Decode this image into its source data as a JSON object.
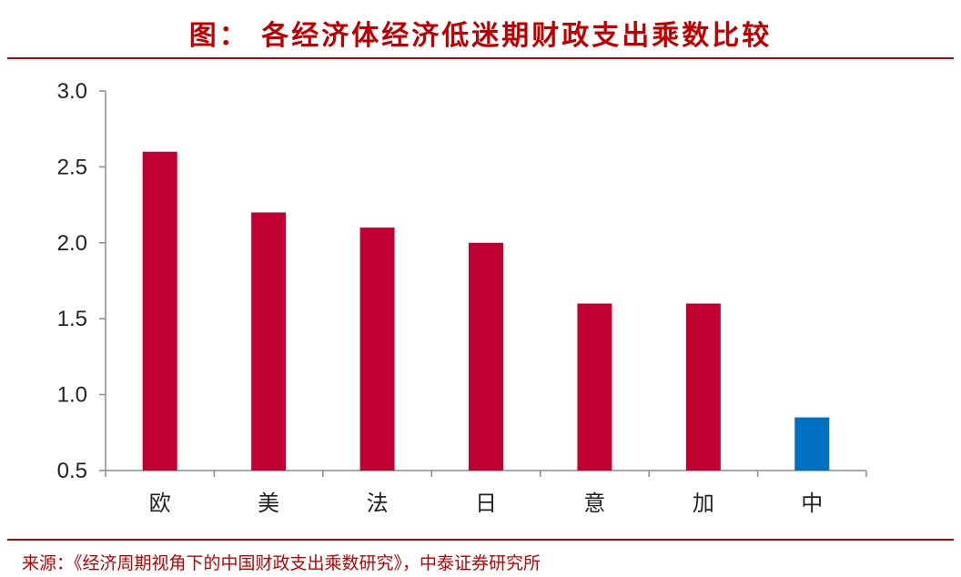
{
  "header": {
    "title": "图：   各经济体经济低迷期财政支出乘数比较"
  },
  "footer": {
    "source": "来源：《经济周期视角下的中国财政支出乘数研究》，中泰证券研究所"
  },
  "colors": {
    "accent": "#c00000",
    "bar_default": "#bf0030",
    "bar_highlight": "#0070c0",
    "axis": "#8c8c8c"
  },
  "chart_data": {
    "type": "bar",
    "title": "",
    "xlabel": "",
    "ylabel": "",
    "categories": [
      "欧",
      "美",
      "法",
      "日",
      "意",
      "加",
      "中"
    ],
    "values": [
      2.6,
      2.2,
      2.1,
      2.0,
      1.6,
      1.6,
      0.85
    ],
    "highlight_index": 6,
    "ylim": [
      0.5,
      3.0
    ],
    "yticks": [
      "3.0",
      "2.5",
      "2.0",
      "1.5",
      "1.0",
      "0.5"
    ],
    "grid": false,
    "legend": "none"
  }
}
